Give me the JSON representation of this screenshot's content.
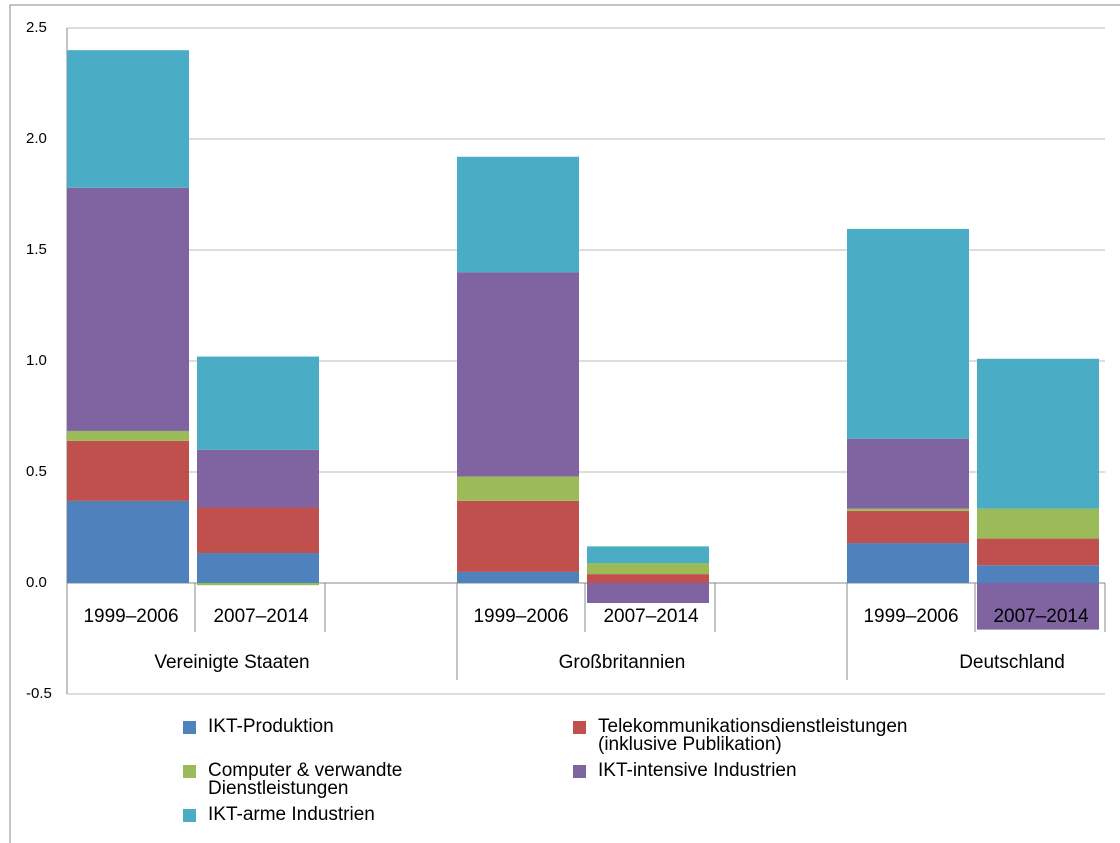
{
  "chart_data": {
    "type": "stacked_bar",
    "categories": [
      "1999–2006",
      "2007–2014",
      "1999–2006",
      "2007–2014",
      "1999–2006",
      "2007–2014"
    ],
    "groups": [
      "Vereinigte Staaten",
      "Großbritannien",
      "Deutschland"
    ],
    "series": [
      {
        "name": "IKT-Produktion",
        "color": "#4f81bd",
        "values": [
          0.37,
          0.135,
          0.05,
          0,
          0.18,
          0.08
        ]
      },
      {
        "name": "Telekommunikationsdienstleistungen (inklusive Publikation)",
        "color": "#c0504d",
        "values": [
          0.27,
          0.205,
          0.32,
          0.04,
          0.145,
          0.12
        ]
      },
      {
        "name": "Computer & verwandte Dienstleistungen",
        "color": "#9bbb59",
        "values": [
          0.045,
          -0.01,
          0.11,
          0.05,
          0.01,
          0.135
        ]
      },
      {
        "name": "IKT-intensive Industrien",
        "color": "#8064a2",
        "values": [
          1.095,
          0.26,
          0.92,
          -0.09,
          0.315,
          -0.21
        ]
      },
      {
        "name": "IKT-arme Industrien",
        "color": "#4bacc6",
        "values": [
          0.62,
          0.42,
          0.52,
          0.075,
          0.945,
          0.675
        ]
      }
    ],
    "ylim": [
      -0.5,
      2.5
    ],
    "yticks": [
      -0.5,
      {
        "value": 0,
        "label": "0.0"
      },
      0.5,
      {
        "value": 1,
        "label": "1.0"
      },
      1.5,
      {
        "value": 2,
        "label": "2.0"
      },
      2.5
    ],
    "grid": true
  }
}
